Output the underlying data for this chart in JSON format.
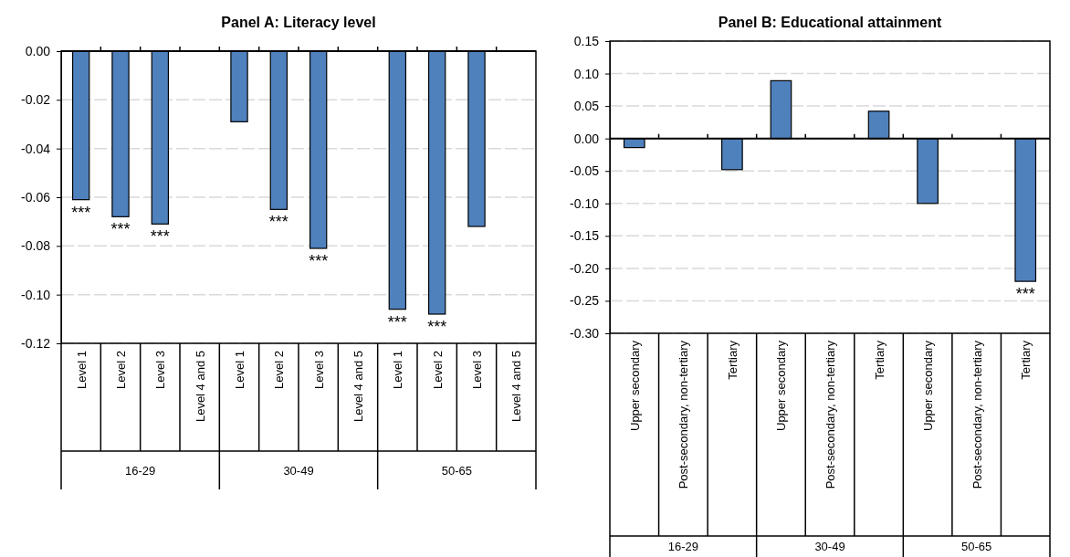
{
  "chart_data": [
    {
      "type": "bar",
      "title": "Panel A: Literacy level",
      "categories": [
        "Level 1",
        "Level 2",
        "Level 3",
        "Level 4 and 5",
        "Level 1",
        "Level 2",
        "Level 3",
        "Level 4 and 5",
        "Level 1",
        "Level 2",
        "Level 3",
        "Level 4 and 5"
      ],
      "values": [
        -0.061,
        -0.068,
        -0.071,
        null,
        -0.029,
        -0.065,
        -0.081,
        null,
        -0.106,
        -0.108,
        -0.072,
        null
      ],
      "color": "#4f81bd",
      "ylim": [
        -0.12,
        0
      ],
      "yticks": [
        {
          "value": -0.12,
          "label": "-0.12"
        },
        {
          "value": -0.1,
          "label": "-0.10"
        },
        {
          "value": -0.08,
          "label": "-0.08"
        },
        {
          "value": -0.06,
          "label": "-0.06"
        },
        {
          "value": -0.04,
          "label": "-0.04"
        },
        {
          "value": -0.02,
          "label": "-0.02"
        },
        {
          "value": 0,
          "label": "0.00"
        }
      ],
      "grid": "y",
      "value_labels": [
        "***",
        "***",
        "***",
        null,
        null,
        "***",
        "***",
        null,
        "***",
        "***",
        null,
        null
      ],
      "annotations": [
        "16-29",
        "30-49",
        "50-65"
      ]
    },
    {
      "type": "bar",
      "title": "Panel B: Educational attainment",
      "categories": [
        "Upper secondary",
        "Post-secondary, non-tertiary",
        "Tertiary",
        "Upper secondary",
        "Post-secondary, non-tertiary",
        "Tertiary",
        "Upper secondary",
        "Post-secondary, non-tertiary",
        "Tertiary"
      ],
      "values": [
        -0.014,
        null,
        -0.048,
        0.089,
        null,
        0.042,
        -0.1,
        null,
        -0.22
      ],
      "color": "#4f81bd",
      "ylim": [
        -0.3,
        0.15
      ],
      "yticks": [
        {
          "value": -0.3,
          "label": "-0.30"
        },
        {
          "value": -0.25,
          "label": "-0.25"
        },
        {
          "value": -0.2,
          "label": "-0.20"
        },
        {
          "value": -0.15,
          "label": "-0.15"
        },
        {
          "value": -0.1,
          "label": "-0.10"
        },
        {
          "value": -0.05,
          "label": "-0.05"
        },
        {
          "value": 0,
          "label": "0.00"
        },
        {
          "value": 0.05,
          "label": "0.05"
        },
        {
          "value": 0.1,
          "label": "0.10"
        },
        {
          "value": 0.15,
          "label": "0.15"
        }
      ],
      "grid": "y",
      "value_labels": [
        null,
        null,
        null,
        null,
        null,
        null,
        null,
        null,
        "***"
      ],
      "annotations": [
        "16-29",
        "30-49",
        "50-65"
      ]
    }
  ]
}
